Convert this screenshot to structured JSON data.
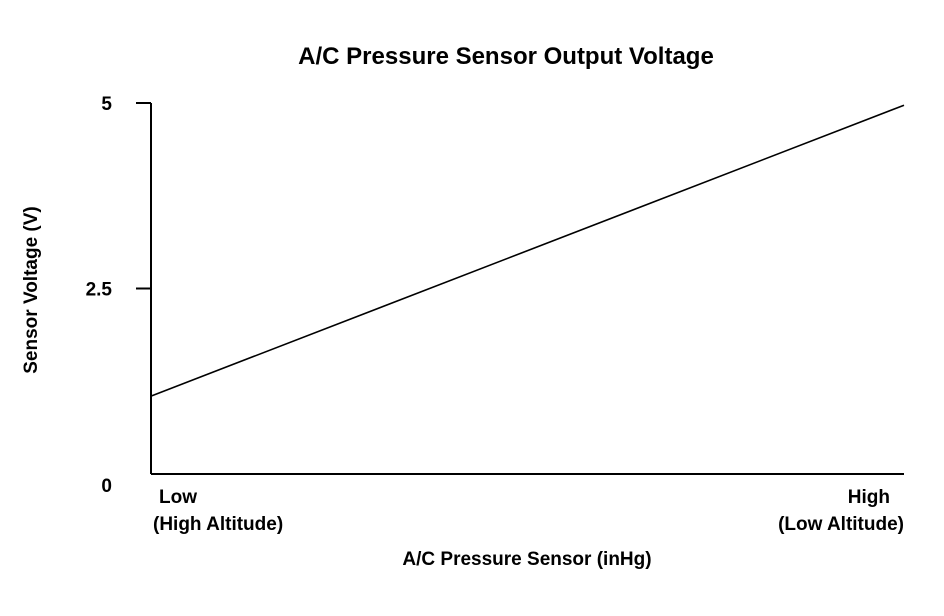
{
  "chart_data": {
    "type": "line",
    "title": "A/C Pressure Sensor Output Voltage",
    "xlabel": "A/C Pressure Sensor (inHg)",
    "ylabel": "Sensor Voltage (V)",
    "x_ticks": [
      {
        "value": 0,
        "lines": [
          "Low",
          "(High Altitude)"
        ]
      },
      {
        "value": 1,
        "lines": [
          "High",
          "(Low Altitude)"
        ]
      }
    ],
    "y_ticks": [
      "0",
      "2.5",
      "5"
    ],
    "y_tick_values": [
      0,
      2.5,
      5
    ],
    "xlim": [
      0,
      1
    ],
    "ylim": [
      0,
      5
    ],
    "grid": false,
    "series": [
      {
        "x": [
          0,
          1
        ],
        "values": [
          1.05,
          4.97
        ]
      }
    ],
    "colors": {
      "line": "#000000",
      "axis": "#000000",
      "background": "#ffffff"
    }
  }
}
